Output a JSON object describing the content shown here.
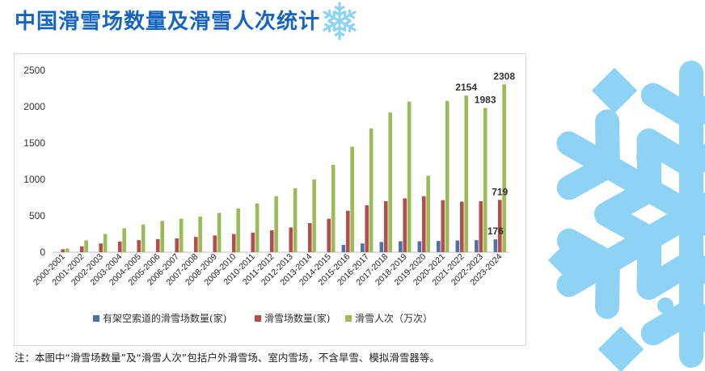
{
  "page": {
    "title": "中国滑雪场数量及滑雪人次统计",
    "footnote": "注：本图中“滑雪场数量”及“滑雪人次”包括户外滑雪场、室内雪场，不含旱雪、模拟滑雪器等。",
    "accent_color": "#1565c0",
    "decor_color": "#8fd3f4"
  },
  "chart_data": {
    "type": "bar",
    "categories": [
      "2000-2001",
      "2001-2002",
      "2002-2003",
      "2003-2004",
      "2004-2005",
      "2005-2006",
      "2006-2007",
      "2007-2008",
      "2008-2009",
      "2009-2010",
      "2010-2011",
      "2011-2012",
      "2012-2013",
      "2013-2014",
      "2014-2015",
      "2015-2016",
      "2016-2017",
      "2017-2018",
      "2018-2019",
      "2019-2020",
      "2020-2021",
      "2021-2022",
      "2022-2023",
      "2023-2024"
    ],
    "series": [
      {
        "name": "有架空索道的滑雪场数量(家)",
        "color": "#4f6fa6",
        "values": [
          0,
          0,
          0,
          0,
          0,
          0,
          0,
          0,
          0,
          0,
          0,
          0,
          0,
          0,
          0,
          100,
          120,
          140,
          150,
          150,
          155,
          160,
          165,
          176
        ]
      },
      {
        "name": "滑雪场数量(家)",
        "color": "#b24e4c",
        "values": [
          40,
          80,
          120,
          145,
          165,
          180,
          190,
          210,
          230,
          250,
          270,
          300,
          340,
          400,
          460,
          570,
          645,
          700,
          740,
          770,
          715,
          695,
          700,
          719
        ]
      },
      {
        "name": "滑雪人次（万次）",
        "color": "#9bbb59",
        "values": [
          50,
          160,
          250,
          330,
          380,
          430,
          460,
          490,
          540,
          600,
          670,
          770,
          880,
          1000,
          1200,
          1450,
          1700,
          1920,
          2070,
          1050,
          2080,
          2154,
          1983,
          2308
        ]
      }
    ],
    "data_labels": [
      {
        "series": 2,
        "index": 21,
        "text": "2154"
      },
      {
        "series": 2,
        "index": 22,
        "text": "1983"
      },
      {
        "series": 2,
        "index": 23,
        "text": "2308"
      },
      {
        "series": 1,
        "index": 23,
        "text": "719"
      },
      {
        "series": 0,
        "index": 23,
        "text": "176"
      }
    ],
    "ylim": [
      0,
      2500
    ],
    "yticks": [
      0,
      500,
      1000,
      1500,
      2000,
      2500
    ],
    "grid": false,
    "legend_position": "bottom"
  }
}
